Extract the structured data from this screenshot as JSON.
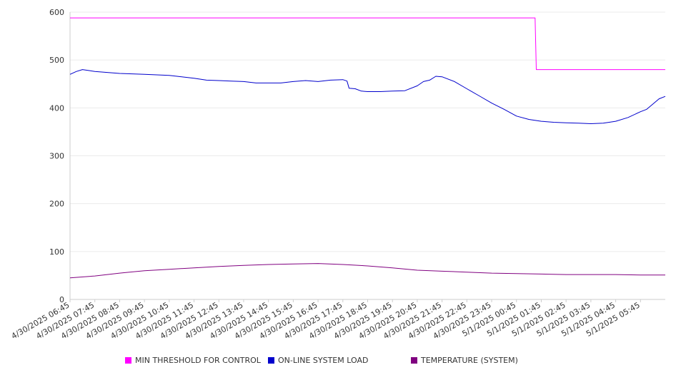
{
  "chart_data": {
    "type": "line",
    "title": "",
    "xlabel": "",
    "ylabel": "",
    "ylim": [
      0,
      600
    ],
    "y_ticks": [
      0,
      100,
      200,
      300,
      400,
      500,
      600
    ],
    "grid": "horizontal",
    "legend_position": "bottom",
    "x_tick_labels": [
      "4/30/2025 06:45",
      "4/30/2025 07:45",
      "4/30/2025 08:45",
      "4/30/2025 09:45",
      "4/30/2025 10:45",
      "4/30/2025 11:45",
      "4/30/2025 12:45",
      "4/30/2025 13:45",
      "4/30/2025 14:45",
      "4/30/2025 15:45",
      "4/30/2025 16:45",
      "4/30/2025 17:45",
      "4/30/2025 18:45",
      "4/30/2025 19:45",
      "4/30/2025 20:45",
      "4/30/2025 21:45",
      "4/30/2025 22:45",
      "4/30/2025 23:45",
      "5/1/2025 00:45",
      "5/1/2025 01:45",
      "5/1/2025 02:45",
      "5/1/2025 03:45",
      "5/1/2025 04:45",
      "5/1/2025 05:45"
    ],
    "x_start": "4/30/2025 06:45",
    "x_end": "5/1/2025 06:45",
    "series": [
      {
        "name": "MIN THRESHOLD FOR CONTROL",
        "color": "#ff00ff",
        "points": [
          [
            "4/30/2025 06:45",
            588
          ],
          [
            "5/1/2025 01:30",
            588
          ],
          [
            "5/1/2025 01:33",
            480
          ],
          [
            "5/1/2025 06:45",
            480
          ]
        ]
      },
      {
        "name": "ON-LINE SYSTEM LOAD",
        "color": "#0000cc",
        "points": [
          [
            "4/30/2025 06:45",
            470
          ],
          [
            "4/30/2025 07:00",
            476
          ],
          [
            "4/30/2025 07:15",
            480
          ],
          [
            "4/30/2025 07:30",
            478
          ],
          [
            "4/30/2025 07:45",
            476
          ],
          [
            "4/30/2025 08:15",
            474
          ],
          [
            "4/30/2025 08:45",
            472
          ],
          [
            "4/30/2025 09:15",
            471
          ],
          [
            "4/30/2025 09:45",
            470
          ],
          [
            "4/30/2025 10:15",
            469
          ],
          [
            "4/30/2025 10:45",
            468
          ],
          [
            "4/30/2025 11:15",
            465
          ],
          [
            "4/30/2025 11:45",
            462
          ],
          [
            "4/30/2025 12:15",
            458
          ],
          [
            "4/30/2025 12:45",
            457
          ],
          [
            "4/30/2025 13:15",
            456
          ],
          [
            "4/30/2025 13:45",
            455
          ],
          [
            "4/30/2025 14:15",
            452
          ],
          [
            "4/30/2025 14:45",
            452
          ],
          [
            "4/30/2025 15:15",
            452
          ],
          [
            "4/30/2025 15:45",
            455
          ],
          [
            "4/30/2025 16:15",
            457
          ],
          [
            "4/30/2025 16:45",
            455
          ],
          [
            "4/30/2025 17:15",
            458
          ],
          [
            "4/30/2025 17:45",
            459
          ],
          [
            "4/30/2025 17:55",
            456
          ],
          [
            "4/30/2025 18:00",
            441
          ],
          [
            "4/30/2025 18:15",
            440
          ],
          [
            "4/30/2025 18:30",
            435
          ],
          [
            "4/30/2025 18:45",
            434
          ],
          [
            "4/30/2025 19:15",
            434
          ],
          [
            "4/30/2025 19:45",
            435
          ],
          [
            "4/30/2025 20:15",
            436
          ],
          [
            "4/30/2025 20:45",
            446
          ],
          [
            "4/30/2025 21:00",
            455
          ],
          [
            "4/30/2025 21:15",
            458
          ],
          [
            "4/30/2025 21:30",
            466
          ],
          [
            "4/30/2025 21:45",
            465
          ],
          [
            "4/30/2025 22:15",
            455
          ],
          [
            "4/30/2025 22:45",
            440
          ],
          [
            "4/30/2025 23:15",
            425
          ],
          [
            "4/30/2025 23:45",
            410
          ],
          [
            "5/1/2025 00:15",
            397
          ],
          [
            "5/1/2025 00:45",
            383
          ],
          [
            "5/1/2025 01:15",
            376
          ],
          [
            "5/1/2025 01:45",
            372
          ],
          [
            "5/1/2025 02:15",
            370
          ],
          [
            "5/1/2025 02:45",
            369
          ],
          [
            "5/1/2025 03:15",
            368
          ],
          [
            "5/1/2025 03:45",
            367
          ],
          [
            "5/1/2025 04:15",
            368
          ],
          [
            "5/1/2025 04:45",
            372
          ],
          [
            "5/1/2025 05:15",
            380
          ],
          [
            "5/1/2025 05:45",
            392
          ],
          [
            "5/1/2025 06:00",
            397
          ],
          [
            "5/1/2025 06:15",
            408
          ],
          [
            "5/1/2025 06:30",
            419
          ],
          [
            "5/1/2025 06:45",
            424
          ]
        ]
      },
      {
        "name": "TEMPERATURE (SYSTEM)",
        "color": "#800080",
        "points": [
          [
            "4/30/2025 06:45",
            45
          ],
          [
            "4/30/2025 07:45",
            49
          ],
          [
            "4/30/2025 08:45",
            55
          ],
          [
            "4/30/2025 09:45",
            60
          ],
          [
            "4/30/2025 10:45",
            63
          ],
          [
            "4/30/2025 11:45",
            66
          ],
          [
            "4/30/2025 12:45",
            69
          ],
          [
            "4/30/2025 13:45",
            71
          ],
          [
            "4/30/2025 14:45",
            73
          ],
          [
            "4/30/2025 15:45",
            74
          ],
          [
            "4/30/2025 16:45",
            75
          ],
          [
            "4/30/2025 17:45",
            73
          ],
          [
            "4/30/2025 18:45",
            70
          ],
          [
            "4/30/2025 19:45",
            66
          ],
          [
            "4/30/2025 20:45",
            61
          ],
          [
            "4/30/2025 21:45",
            59
          ],
          [
            "4/30/2025 22:45",
            57
          ],
          [
            "4/30/2025 23:45",
            55
          ],
          [
            "5/1/2025 00:45",
            54
          ],
          [
            "5/1/2025 01:45",
            53
          ],
          [
            "5/1/2025 02:45",
            52
          ],
          [
            "5/1/2025 03:45",
            52
          ],
          [
            "5/1/2025 04:45",
            52
          ],
          [
            "5/1/2025 05:45",
            51
          ],
          [
            "5/1/2025 06:45",
            51
          ]
        ]
      }
    ]
  }
}
